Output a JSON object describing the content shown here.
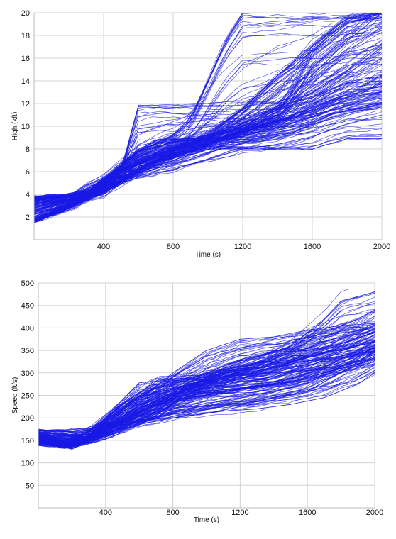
{
  "figure": {
    "background": "#ffffff",
    "line_color": "#1a1ae6",
    "grid_color": "#d3d3d3"
  },
  "chart_data": [
    {
      "type": "line",
      "title": "",
      "xlabel": "Time (s)",
      "ylabel": "High (kft)",
      "xlim": [
        0,
        2000
      ],
      "ylim": [
        0,
        20
      ],
      "xticks": [
        "400",
        "800",
        "1200",
        "1600",
        "2000"
      ],
      "yticks": [
        "2",
        "4",
        "6",
        "8",
        "10",
        "12",
        "14",
        "16",
        "18",
        "20"
      ],
      "grid": true,
      "legend": "none",
      "series_count_approx": 200,
      "series_description": "many flight altitude trajectories (kft) over time (s)",
      "series": [
        {
          "x": [
            0,
            150,
            300,
            400,
            500,
            600,
            800,
            1000,
            1200,
            1400,
            1600,
            1800,
            2000
          ],
          "y": [
            1.6,
            2.6,
            3.8,
            4.6,
            5.3,
            6.2,
            7.5,
            8.5,
            9.5,
            10.2,
            11.0,
            11.8,
            12.5
          ]
        },
        {
          "x": [
            0,
            100,
            200,
            300,
            400,
            600,
            800,
            1000,
            1200,
            1400,
            1600,
            1800,
            2000
          ],
          "y": [
            3.8,
            3.8,
            3.8,
            3.9,
            4.6,
            6.0,
            7.0,
            8.0,
            8.0,
            8.0,
            8.0,
            8.9,
            8.9
          ]
        },
        {
          "x": [
            0,
            200,
            300,
            400,
            500,
            600,
            800,
            1000,
            1200,
            1400,
            1600,
            1800,
            2000
          ],
          "y": [
            3.5,
            3.8,
            4.8,
            5.5,
            6.8,
            7.8,
            8.6,
            9.2,
            10.0,
            11.5,
            14.5,
            17.5,
            20
          ]
        },
        {
          "x": [
            0,
            200,
            400,
            600,
            800,
            1000,
            1200,
            1400,
            1600,
            1800,
            2000
          ],
          "y": [
            1.6,
            2.9,
            4.0,
            6.1,
            7.8,
            9.0,
            10.2,
            11.8,
            12.5,
            13.8,
            14.0
          ]
        },
        {
          "x": [
            0,
            300,
            400,
            600,
            800,
            900,
            1000,
            1100,
            1200,
            1400,
            1600,
            2000
          ],
          "y": [
            3.2,
            3.8,
            5.1,
            7.8,
            9.2,
            10.5,
            14.0,
            17.5,
            20,
            20,
            20,
            20
          ]
        },
        {
          "x": [
            0,
            200,
            400,
            500,
            600,
            800,
            1000,
            1200,
            1400,
            1600,
            1800,
            2000
          ],
          "y": [
            3.6,
            3.9,
            4.2,
            5.8,
            11.8,
            11.8,
            11.8,
            11.8,
            11.8,
            12.5,
            14.5,
            17.0
          ]
        },
        {
          "x": [
            0,
            150,
            300,
            500,
            700,
            900,
            1100,
            1300,
            1500,
            1700,
            2000
          ],
          "y": [
            1.6,
            2.4,
            3.6,
            5.2,
            6.8,
            8.2,
            9.1,
            10.0,
            11.0,
            12.3,
            13.0
          ]
        },
        {
          "x": [
            0,
            100,
            300,
            400,
            500,
            700,
            900,
            1100,
            1300,
            1500,
            1700,
            2000
          ],
          "y": [
            3.8,
            3.8,
            3.9,
            4.9,
            6.6,
            8.8,
            8.8,
            8.8,
            8.8,
            9.5,
            11.0,
            12.0
          ]
        },
        {
          "x": [
            0,
            200,
            400,
            600,
            800,
            1000,
            1200,
            1400,
            1500,
            1600,
            1800,
            2000
          ],
          "y": [
            1.8,
            3.2,
            4.3,
            6.5,
            7.3,
            8.3,
            9.6,
            11.0,
            13.5,
            16.5,
            19.0,
            20
          ]
        },
        {
          "x": [
            0,
            200,
            400,
            600,
            800,
            1000,
            1200,
            1400,
            1600,
            1800,
            2000
          ],
          "y": [
            3.7,
            4.0,
            4.5,
            5.5,
            6.2,
            7.1,
            8.0,
            8.4,
            9.1,
            10.2,
            11.0
          ]
        },
        {
          "x": [
            0,
            300,
            500,
            700,
            900,
            1100,
            1300,
            1500,
            1700,
            1900,
            2000
          ],
          "y": [
            2.8,
            4.0,
            6.1,
            7.2,
            8.1,
            9.0,
            9.9,
            10.8,
            12.0,
            13.0,
            13.8
          ]
        },
        {
          "x": [
            0,
            250,
            400,
            600,
            800,
            1000,
            1200,
            1400,
            1600,
            1800,
            2000
          ],
          "y": [
            1.6,
            3.1,
            5.2,
            6.8,
            8.0,
            9.1,
            11.5,
            14.5,
            17.0,
            19.5,
            20
          ]
        }
      ]
    },
    {
      "type": "line",
      "title": "",
      "xlabel": "Time (s)",
      "ylabel": "Speed (ft/s)",
      "xlim": [
        0,
        2000
      ],
      "ylim": [
        0,
        500
      ],
      "xticks": [
        "400",
        "800",
        "1200",
        "1600",
        "2000"
      ],
      "yticks": [
        "50",
        "100",
        "150",
        "200",
        "250",
        "300",
        "350",
        "400",
        "450",
        "500"
      ],
      "grid": true,
      "legend": "none",
      "series_count_approx": 200,
      "series_description": "many flight speed trajectories (ft/s) over time (s)",
      "series": [
        {
          "x": [
            0,
            100,
            200,
            300,
            400,
            600,
            800,
            1000,
            1200,
            1400,
            1600,
            1800,
            2000
          ],
          "y": [
            150,
            140,
            135,
            150,
            175,
            220,
            255,
            275,
            290,
            300,
            320,
            345,
            360
          ]
        },
        {
          "x": [
            0,
            100,
            200,
            300,
            500,
            600,
            800,
            1000,
            1200,
            1400,
            1600,
            1800,
            2000
          ],
          "y": [
            160,
            145,
            140,
            160,
            240,
            278,
            285,
            290,
            295,
            300,
            305,
            310,
            320
          ]
        },
        {
          "x": [
            0,
            100,
            200,
            300,
            400,
            600,
            800,
            1000,
            1200,
            1400,
            1600,
            1800,
            2000
          ],
          "y": [
            170,
            172,
            168,
            150,
            160,
            185,
            200,
            210,
            225,
            240,
            260,
            300,
            350
          ]
        },
        {
          "x": [
            0,
            150,
            300,
            500,
            700,
            900,
            1100,
            1300,
            1500,
            1700,
            1900,
            2000
          ],
          "y": [
            140,
            138,
            145,
            170,
            205,
            260,
            310,
            335,
            360,
            390,
            420,
            440
          ]
        },
        {
          "x": [
            0,
            150,
            300,
            500,
            700,
            900,
            1100,
            1300,
            1500,
            1600,
            1700,
            1800,
            2000
          ],
          "y": [
            165,
            150,
            160,
            230,
            250,
            270,
            290,
            320,
            360,
            390,
            420,
            460,
            480
          ]
        },
        {
          "x": [
            0,
            100,
            200,
            400,
            600,
            800,
            1000,
            1200,
            1400,
            1600,
            1800,
            2000
          ],
          "y": [
            150,
            142,
            140,
            175,
            215,
            245,
            260,
            265,
            275,
            300,
            330,
            370
          ]
        },
        {
          "x": [
            0,
            150,
            300,
            500,
            700,
            900,
            1100,
            1300,
            1500,
            1700,
            1900,
            2000
          ],
          "y": [
            145,
            135,
            150,
            195,
            230,
            255,
            275,
            300,
            325,
            350,
            380,
            400
          ]
        },
        {
          "x": [
            0,
            150,
            300,
            450,
            600,
            800,
            1000,
            1200,
            1400,
            1600,
            1800,
            2000
          ],
          "y": [
            155,
            148,
            160,
            200,
            240,
            300,
            350,
            375,
            380,
            395,
            405,
            410
          ]
        },
        {
          "x": [
            0,
            100,
            300,
            500,
            700,
            900,
            1100,
            1300,
            1500,
            1700,
            1900,
            2000
          ],
          "y": [
            175,
            170,
            175,
            185,
            195,
            205,
            215,
            220,
            230,
            245,
            275,
            300
          ]
        },
        {
          "x": [
            0,
            200,
            400,
            600,
            800,
            1000,
            1200,
            1400,
            1600,
            1800,
            2000
          ],
          "y": [
            140,
            138,
            170,
            210,
            260,
            300,
            330,
            345,
            350,
            365,
            390
          ]
        },
        {
          "x": [
            0,
            200,
            350,
            500,
            700,
            900,
            1100,
            1300,
            1500,
            1700,
            2000
          ],
          "y": [
            150,
            140,
            155,
            180,
            215,
            240,
            258,
            268,
            280,
            300,
            330
          ]
        },
        {
          "x": [
            0,
            150,
            300,
            500,
            700,
            900,
            1100,
            1300,
            1500,
            1700,
            1900,
            2000
          ],
          "y": [
            160,
            150,
            170,
            230,
            280,
            285,
            300,
            310,
            330,
            345,
            360,
            370
          ]
        }
      ]
    }
  ]
}
